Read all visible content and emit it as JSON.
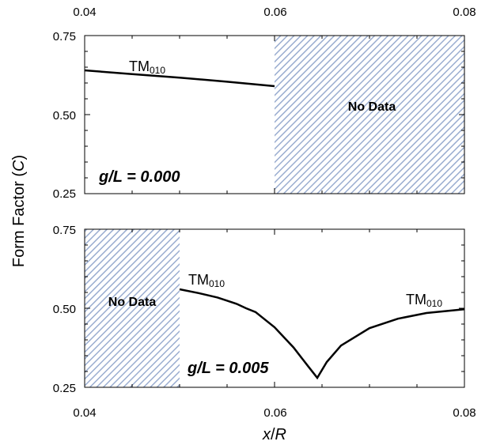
{
  "chart_data": [
    {
      "type": "line",
      "panel": "top",
      "xlim": [
        0.04,
        0.08
      ],
      "ylim": [
        0.25,
        0.75
      ],
      "x_ticks": [
        "0.04",
        "0.06",
        "0.08"
      ],
      "y_ticks": [
        "0.75",
        "0.50",
        "0.25"
      ],
      "series": [
        {
          "name": "TM₀₁₀",
          "x": [
            0.04,
            0.045,
            0.05,
            0.055,
            0.06
          ],
          "y": [
            0.64,
            0.628,
            0.617,
            0.604,
            0.59
          ]
        }
      ],
      "no_data_regions": [
        {
          "x": [
            0.06,
            0.08
          ],
          "label": "No Data"
        }
      ],
      "gap_label": "g/L = 0.000",
      "mode_label": {
        "main": "TM",
        "sub": "010"
      }
    },
    {
      "type": "line",
      "panel": "bottom",
      "xlim": [
        0.04,
        0.08
      ],
      "ylim": [
        0.25,
        0.75
      ],
      "x_ticks": [
        "0.04",
        "0.06",
        "0.08"
      ],
      "y_ticks": [
        "0.75",
        "0.50",
        "0.25"
      ],
      "series": [
        {
          "name": "TM₀₁₀",
          "x": [
            0.05,
            0.052,
            0.054,
            0.056,
            0.057,
            0.058,
            0.06,
            0.062,
            0.0635,
            0.0645,
            0.0655,
            0.067,
            0.07,
            0.073,
            0.076,
            0.08
          ],
          "y": [
            0.56,
            0.548,
            0.534,
            0.514,
            0.5,
            0.488,
            0.44,
            0.376,
            0.318,
            0.28,
            0.33,
            0.382,
            0.437,
            0.467,
            0.485,
            0.497
          ]
        }
      ],
      "no_data_regions": [
        {
          "x": [
            0.04,
            0.05
          ],
          "label": "No Data"
        }
      ],
      "gap_label": "g/L = 0.005",
      "mode_labels": [
        {
          "main": "TM",
          "sub": "010"
        },
        {
          "main": "TM",
          "sub": "010"
        }
      ]
    }
  ],
  "ylabel": {
    "prefix": "Form Factor (",
    "var": "C",
    "suffix": ")"
  },
  "xlabel": {
    "var1": "x",
    "sep": "/",
    "var2": "R"
  },
  "x_ticks_top": [
    "0.04",
    "0.06",
    "0.08"
  ],
  "colors": {
    "hatch": "#9aadd0",
    "line": "#000000"
  }
}
